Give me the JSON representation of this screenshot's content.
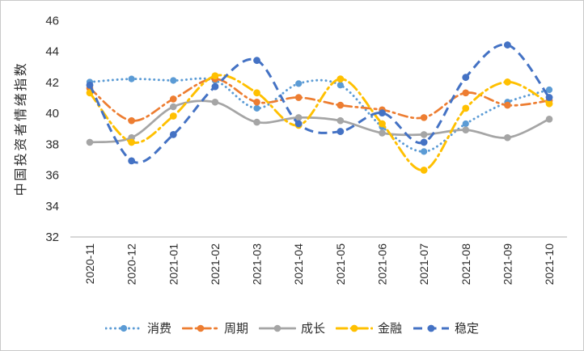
{
  "chart_data": {
    "type": "line",
    "title": "",
    "xlabel": "",
    "ylabel": "中国投资者情绪指数",
    "ylim": [
      32,
      46
    ],
    "yticks": [
      32,
      34,
      36,
      38,
      40,
      42,
      44,
      46
    ],
    "grid": false,
    "legend_position": "bottom",
    "smooth": true,
    "categories": [
      "2020-11",
      "2020-12",
      "2021-01",
      "2021-02",
      "2021-03",
      "2021-04",
      "2021-05",
      "2021-06",
      "2021-07",
      "2021-08",
      "2021-09",
      "2021-10"
    ],
    "series": [
      {
        "id": "consumption",
        "name": "消费",
        "color": "#5B9BD5",
        "style": "dotted",
        "values": [
          42.0,
          42.2,
          42.1,
          42.1,
          40.3,
          41.9,
          41.8,
          39.1,
          37.5,
          39.3,
          40.7,
          41.5
        ]
      },
      {
        "id": "cycle",
        "name": "周期",
        "color": "#ED7D31",
        "style": "dash-dot",
        "values": [
          41.6,
          39.5,
          40.9,
          42.2,
          40.7,
          41.0,
          40.5,
          40.2,
          39.7,
          41.3,
          40.5,
          40.8
        ]
      },
      {
        "id": "growth",
        "name": "成长",
        "color": "#A5A5A5",
        "style": "solid",
        "values": [
          38.1,
          38.4,
          40.4,
          40.7,
          39.4,
          39.7,
          39.5,
          38.7,
          38.6,
          38.9,
          38.4,
          39.6
        ]
      },
      {
        "id": "finance",
        "name": "金融",
        "color": "#FFC000",
        "style": "long-dash-dot",
        "values": [
          41.3,
          38.1,
          39.8,
          42.4,
          41.3,
          39.2,
          42.2,
          39.3,
          36.3,
          40.3,
          42.0,
          40.6
        ]
      },
      {
        "id": "stability",
        "name": "稳定",
        "color": "#4472C4",
        "style": "dashed",
        "values": [
          41.8,
          36.9,
          38.6,
          41.7,
          43.4,
          39.3,
          38.8,
          40.0,
          38.1,
          42.3,
          44.4,
          41.0
        ]
      }
    ],
    "axis_color": "#bfbfbf"
  }
}
